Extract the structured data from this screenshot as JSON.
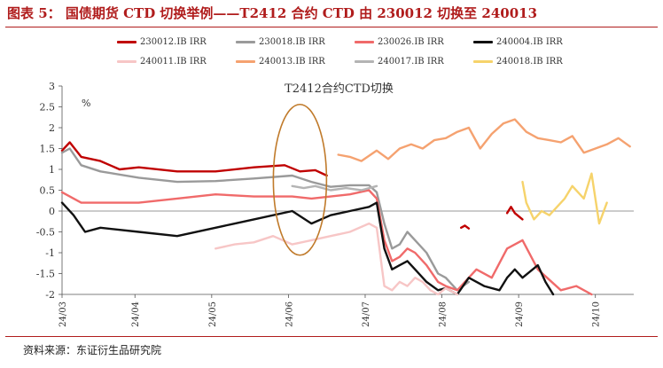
{
  "figure": {
    "title": "图表 5： 国债期货 CTD 切换举例——T2412 合约 CTD 由 230012 切换至 240013",
    "source": "资料来源：东证衍生品研究院"
  },
  "chart_data": {
    "type": "line",
    "title": "T2412合约CTD切换",
    "ylabel": "%",
    "ylim": [
      -2,
      3
    ],
    "yticks": [
      -2,
      -1.5,
      -1,
      -0.5,
      0,
      0.5,
      1,
      1.5,
      2,
      2.5,
      3
    ],
    "x_ticks": [
      "24/03",
      "24/04",
      "24/05",
      "24/06",
      "24/07",
      "24/08",
      "24/09",
      "24/10"
    ],
    "x_index_range": [
      0,
      149
    ],
    "x_tick_index": [
      0,
      19,
      39,
      59,
      79,
      99,
      119,
      139
    ],
    "legend": "top",
    "annotation": "ellipse around the CTD switch (mid-July)",
    "series": [
      {
        "name": "230012.IB IRR",
        "color": "#c00000",
        "x": [
          0,
          2,
          5,
          10,
          15,
          20,
          30,
          40,
          50,
          58,
          62,
          66,
          69
        ],
        "y": [
          1.45,
          1.65,
          1.3,
          1.2,
          1.0,
          1.05,
          0.95,
          0.95,
          1.05,
          1.1,
          0.95,
          0.98,
          0.85
        ]
      },
      {
        "name": "",
        "color": "#c00000",
        "x": [
          116,
          117,
          118,
          120
        ],
        "y": [
          -0.05,
          0.1,
          -0.05,
          -0.2
        ]
      },
      {
        "name": "",
        "color": "#c00000",
        "x": [
          104,
          105,
          106
        ],
        "y": [
          -0.4,
          -0.35,
          -0.42
        ]
      },
      {
        "name": "230018.IB IRR",
        "color": "#9a9a9a",
        "x": [
          0,
          2,
          5,
          10,
          20,
          30,
          40,
          50,
          60,
          65,
          70,
          75,
          80,
          82,
          84,
          86,
          88,
          90,
          92,
          95,
          98,
          100,
          103,
          106
        ],
        "y": [
          1.4,
          1.5,
          1.1,
          0.95,
          0.8,
          0.7,
          0.72,
          0.78,
          0.85,
          0.7,
          0.58,
          0.62,
          0.62,
          0.45,
          -0.3,
          -0.9,
          -0.8,
          -0.5,
          -0.7,
          -1.0,
          -1.5,
          -1.6,
          -1.9,
          -1.7
        ]
      },
      {
        "name": "230026.IB IRR",
        "color": "#f06a6a",
        "x": [
          0,
          5,
          10,
          20,
          30,
          40,
          50,
          60,
          65,
          70,
          75,
          80,
          82,
          84,
          86,
          88,
          90,
          92,
          95,
          98,
          100,
          103,
          108,
          112,
          116,
          120,
          124,
          130,
          134,
          138
        ],
        "y": [
          0.45,
          0.2,
          0.2,
          0.2,
          0.3,
          0.4,
          0.35,
          0.35,
          0.3,
          0.35,
          0.4,
          0.5,
          0.3,
          -0.7,
          -1.2,
          -1.1,
          -0.9,
          -1.0,
          -1.3,
          -1.7,
          -1.8,
          -1.9,
          -1.4,
          -1.6,
          -0.9,
          -0.7,
          -1.4,
          -1.9,
          -1.8,
          -2.0
        ]
      },
      {
        "name": "240004.IB IRR",
        "color": "#111111",
        "x": [
          0,
          3,
          6,
          10,
          20,
          30,
          40,
          50,
          60,
          65,
          70,
          75,
          80,
          82,
          84,
          86,
          88,
          90,
          92,
          95,
          98,
          100,
          103,
          106,
          110,
          114,
          116,
          118,
          120,
          124,
          126,
          128
        ],
        "y": [
          0.2,
          -0.1,
          -0.5,
          -0.4,
          -0.5,
          -0.6,
          -0.4,
          -0.2,
          0.0,
          -0.3,
          -0.1,
          0.0,
          0.1,
          0.2,
          -0.9,
          -1.4,
          -1.3,
          -1.2,
          -1.4,
          -1.7,
          -1.9,
          -1.85,
          -2.0,
          -1.6,
          -1.8,
          -1.9,
          -1.6,
          -1.4,
          -1.6,
          -1.3,
          -1.7,
          -2.0
        ]
      },
      {
        "name": "240011.IB IRR",
        "color": "#f7c6c6",
        "x": [
          40,
          45,
          50,
          55,
          60,
          65,
          70,
          75,
          80,
          82,
          84,
          86,
          88,
          90,
          92,
          94,
          96,
          98,
          100,
          103
        ],
        "y": [
          -0.9,
          -0.8,
          -0.75,
          -0.6,
          -0.8,
          -0.7,
          -0.6,
          -0.5,
          -0.3,
          -0.4,
          -1.8,
          -1.9,
          -1.7,
          -1.8,
          -1.6,
          -1.7,
          -1.9,
          -2.0,
          -1.85,
          -2.0
        ]
      },
      {
        "name": "240013.IB IRR",
        "color": "#f5a270",
        "x": [
          72,
          75,
          78,
          82,
          85,
          88,
          91,
          94,
          97,
          100,
          103,
          106,
          109,
          112,
          115,
          118,
          121,
          124,
          127,
          130,
          133,
          136,
          139,
          142,
          145,
          148
        ],
        "y": [
          1.35,
          1.3,
          1.2,
          1.45,
          1.25,
          1.5,
          1.6,
          1.5,
          1.7,
          1.75,
          1.9,
          2.0,
          1.5,
          1.85,
          2.1,
          2.2,
          1.9,
          1.75,
          1.7,
          1.65,
          1.8,
          1.4,
          1.5,
          1.6,
          1.75,
          1.55
        ]
      },
      {
        "name": "240017.IB IRR",
        "color": "#b4b4b4",
        "x": [
          60,
          63,
          66,
          70,
          74,
          78,
          82
        ],
        "y": [
          0.6,
          0.55,
          0.6,
          0.5,
          0.55,
          0.5,
          0.6
        ]
      },
      {
        "name": "240018.IB IRR",
        "color": "#f6d36b",
        "x": [
          120,
          121,
          123,
          125,
          127,
          131,
          133,
          136,
          138,
          140,
          142
        ],
        "y": [
          0.7,
          0.2,
          -0.2,
          0.0,
          -0.1,
          0.3,
          0.6,
          0.3,
          0.9,
          -0.3,
          0.2
        ]
      }
    ]
  },
  "legend_items": [
    {
      "label": "230012.IB IRR",
      "color": "#c00000"
    },
    {
      "label": "230018.IB IRR",
      "color": "#9a9a9a"
    },
    {
      "label": "230026.IB IRR",
      "color": "#f06a6a"
    },
    {
      "label": "240004.IB IRR",
      "color": "#111111"
    },
    {
      "label": "240011.IB IRR",
      "color": "#f7c6c6"
    },
    {
      "label": "240013.IB IRR",
      "color": "#f5a270"
    },
    {
      "label": "240017.IB IRR",
      "color": "#b4b4b4"
    },
    {
      "label": "240018.IB IRR",
      "color": "#f6d36b"
    }
  ]
}
